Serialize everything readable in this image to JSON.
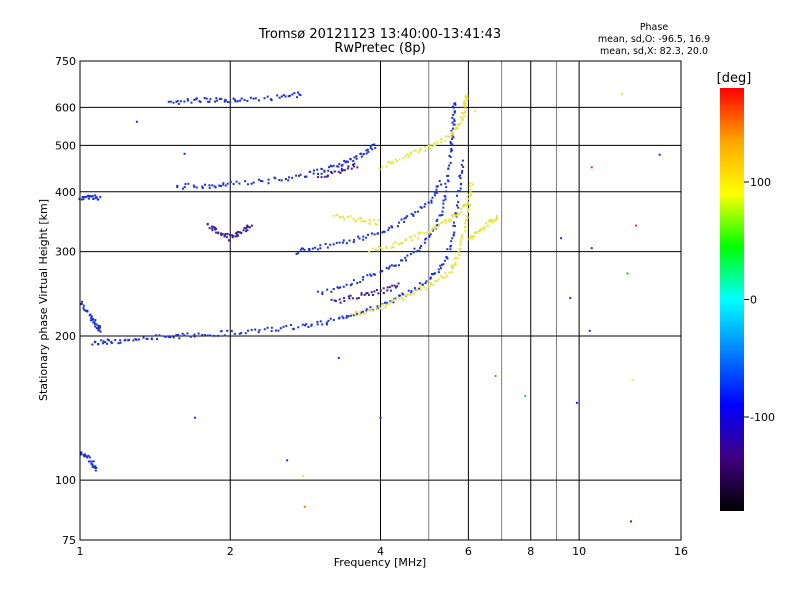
{
  "chart_data": {
    "type": "scatter",
    "title": "Tromsø 20121123 13:40:00-13:41:43",
    "subtitle": "RwPretec (8p)",
    "xlabel": "Frequency [MHz]",
    "ylabel": "Stationary phase Virtual Height [km]",
    "x_scale": "log",
    "y_scale": "log",
    "xlim": [
      1,
      16
    ],
    "ylim": [
      75,
      750
    ],
    "x_ticks": [
      1,
      2,
      4,
      6,
      8,
      10,
      16
    ],
    "x_tick_labels": [
      "1",
      "2",
      "4",
      "6",
      "8",
      "10",
      "16"
    ],
    "y_ticks": [
      75,
      100,
      200,
      300,
      400,
      500,
      600,
      750
    ],
    "y_tick_labels": [
      "75",
      "100",
      "200",
      "300",
      "400",
      "500",
      "600",
      "750"
    ],
    "grid": true,
    "stats": {
      "heading": "Phase",
      "line_o": "mean, sd,O: -96.5, 16.9",
      "line_x": "mean, sd,X: 82.3, 20.0"
    },
    "colorbar": {
      "label": "[deg]",
      "range": [
        -180,
        180
      ],
      "ticks": [
        100,
        0,
        -100
      ],
      "tick_labels": [
        "100",
        "0",
        "-100"
      ],
      "stops": [
        "#ff0000",
        "#ffa500",
        "#ffff00",
        "#00ff00",
        "#00ffff",
        "#0080ff",
        "#0000ff",
        "#400080",
        "#000000"
      ]
    },
    "traces": [
      {
        "name": "",
        "color": "#1a2fd8",
        "points": [
          [
            1.06,
            193
          ],
          [
            1.15,
            195
          ],
          [
            1.3,
            197
          ],
          [
            1.5,
            199
          ],
          [
            1.7,
            201
          ],
          [
            2.0,
            203
          ],
          [
            2.4,
            206
          ],
          [
            2.8,
            210
          ],
          [
            3.2,
            215
          ],
          [
            3.6,
            222
          ],
          [
            4.0,
            232
          ],
          [
            4.5,
            245
          ],
          [
            5.0,
            262
          ],
          [
            5.4,
            285
          ],
          [
            5.6,
            330
          ],
          [
            5.75,
            400
          ],
          [
            5.85,
            470
          ]
        ]
      },
      {
        "name": "",
        "color": "#1a2fd8",
        "points": [
          [
            3.0,
            245
          ],
          [
            3.5,
            258
          ],
          [
            4.0,
            272
          ],
          [
            4.5,
            290
          ],
          [
            5.0,
            320
          ],
          [
            5.3,
            360
          ],
          [
            5.45,
            420
          ],
          [
            5.55,
            500
          ],
          [
            5.6,
            560
          ],
          [
            5.62,
            620
          ]
        ]
      },
      {
        "name": "",
        "color": "#1a2fd8",
        "points": [
          [
            1.55,
            410
          ],
          [
            1.8,
            412
          ],
          [
            2.0,
            415
          ],
          [
            2.4,
            422
          ],
          [
            2.8,
            432
          ],
          [
            3.1,
            445
          ],
          [
            3.4,
            460
          ],
          [
            3.7,
            480
          ],
          [
            3.9,
            500
          ]
        ]
      },
      {
        "name": "",
        "color": "#1a2fd8",
        "points": [
          [
            2.7,
            300
          ],
          [
            3.0,
            306
          ],
          [
            3.5,
            316
          ],
          [
            4.0,
            330
          ],
          [
            4.5,
            350
          ],
          [
            5.0,
            380
          ],
          [
            5.3,
            420
          ]
        ]
      },
      {
        "name": "",
        "color": "#1a2fd8",
        "points": [
          [
            1.5,
            615
          ],
          [
            1.7,
            620
          ],
          [
            1.9,
            625
          ],
          [
            2.1,
            620
          ],
          [
            2.5,
            630
          ],
          [
            2.8,
            640
          ]
        ]
      },
      {
        "name": "",
        "color": "#1a2fd8",
        "points": [
          [
            1.0,
            390
          ],
          [
            1.05,
            390
          ],
          [
            1.1,
            388
          ]
        ]
      },
      {
        "name": "",
        "color": "#1a2fd8",
        "points": [
          [
            1.0,
            235
          ],
          [
            1.05,
            220
          ],
          [
            1.08,
            210
          ],
          [
            1.1,
            205
          ]
        ]
      },
      {
        "name": "",
        "color": "#1a2fd8",
        "points": [
          [
            1.0,
            115
          ],
          [
            1.05,
            110
          ],
          [
            1.08,
            105
          ]
        ]
      },
      {
        "name": "",
        "color": "#e6e63a",
        "points": [
          [
            3.5,
            220
          ],
          [
            4.0,
            230
          ],
          [
            4.5,
            242
          ],
          [
            5.0,
            255
          ],
          [
            5.5,
            270
          ],
          [
            5.7,
            290
          ],
          [
            5.85,
            320
          ],
          [
            6.0,
            370
          ],
          [
            6.1,
            420
          ]
        ]
      },
      {
        "name": "",
        "color": "#e6e63a",
        "points": [
          [
            3.8,
            300
          ],
          [
            4.3,
            310
          ],
          [
            4.8,
            325
          ],
          [
            5.3,
            340
          ],
          [
            5.7,
            360
          ],
          [
            6.0,
            380
          ]
        ]
      },
      {
        "name": "",
        "color": "#e6e63a",
        "points": [
          [
            4.0,
            450
          ],
          [
            4.5,
            475
          ],
          [
            5.0,
            495
          ],
          [
            5.5,
            520
          ],
          [
            5.8,
            560
          ],
          [
            5.9,
            600
          ],
          [
            5.95,
            640
          ]
        ]
      },
      {
        "name": "",
        "color": "#e6e63a",
        "points": [
          [
            3.2,
            355
          ],
          [
            3.6,
            350
          ],
          [
            4.0,
            345
          ]
        ]
      },
      {
        "name": "",
        "color": "#e6e63a",
        "points": [
          [
            6.0,
            320
          ],
          [
            6.3,
            330
          ],
          [
            6.6,
            345
          ],
          [
            6.9,
            355
          ]
        ]
      },
      {
        "name": "",
        "color": "#3d1f9e",
        "points": [
          [
            1.8,
            340
          ],
          [
            1.9,
            330
          ],
          [
            2.0,
            320
          ],
          [
            2.1,
            330
          ],
          [
            2.2,
            340
          ]
        ]
      },
      {
        "name": "",
        "color": "#3d1f9e",
        "points": [
          [
            3.0,
            430
          ],
          [
            3.3,
            440
          ],
          [
            3.6,
            455
          ]
        ]
      },
      {
        "name": "",
        "color": "#3d1f9e",
        "points": [
          [
            3.2,
            235
          ],
          [
            3.6,
            242
          ],
          [
            4.0,
            248
          ],
          [
            4.4,
            255
          ]
        ]
      }
    ],
    "isolated_points": [
      {
        "x": 1.62,
        "y": 480,
        "color": "#1a2fd8"
      },
      {
        "x": 1.7,
        "y": 135,
        "color": "#1a2fd8"
      },
      {
        "x": 2.6,
        "y": 110,
        "color": "#1a2fd8"
      },
      {
        "x": 3.3,
        "y": 180,
        "color": "#1a2fd8"
      },
      {
        "x": 4.0,
        "y": 135,
        "color": "#1a2fd8"
      },
      {
        "x": 6.8,
        "y": 165,
        "color": "#ff6a00"
      },
      {
        "x": 7.8,
        "y": 150,
        "color": "#00bfbf"
      },
      {
        "x": 9.9,
        "y": 145,
        "color": "#1a2fd8"
      },
      {
        "x": 10.5,
        "y": 205,
        "color": "#1a2fd8"
      },
      {
        "x": 10.6,
        "y": 305,
        "color": "#1a2fd8"
      },
      {
        "x": 12.8,
        "y": 162,
        "color": "#e6e63a"
      },
      {
        "x": 13.0,
        "y": 340,
        "color": "#ff3030"
      },
      {
        "x": 14.5,
        "y": 478,
        "color": "#1a2fd8"
      },
      {
        "x": 12.5,
        "y": 270,
        "color": "#00cc00"
      },
      {
        "x": 12.2,
        "y": 640,
        "color": "#e6e63a"
      },
      {
        "x": 9.2,
        "y": 320,
        "color": "#1a2fd8"
      },
      {
        "x": 2.82,
        "y": 88,
        "color": "#ff6a00"
      },
      {
        "x": 2.8,
        "y": 102,
        "color": "#e6e63a"
      },
      {
        "x": 12.7,
        "y": 82,
        "color": "#1a2fd8"
      },
      {
        "x": 6.2,
        "y": 590,
        "color": "#e6e63a"
      },
      {
        "x": 10.6,
        "y": 450,
        "color": "#ff3030"
      },
      {
        "x": 9.6,
        "y": 240,
        "color": "#1a2fd8"
      },
      {
        "x": 1.3,
        "y": 560,
        "color": "#1a2fd8"
      }
    ]
  }
}
